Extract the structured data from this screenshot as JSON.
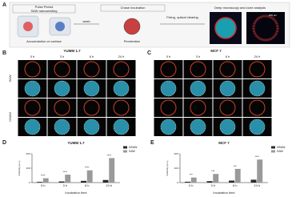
{
  "panel_a": {
    "label": "A",
    "steps": [
      "Pulse Period",
      "SAW nanoseeding",
      "wash",
      "Chase incubation",
      "Fixing, optical clearing",
      "Deep microscopy and zone analysis"
    ],
    "captions": [
      "Accumulation on surface",
      "Penetration"
    ],
    "scale": "200 µm"
  },
  "panel_b": {
    "label": "B",
    "title": "YUMM 1.7",
    "times": [
      "0 h",
      "3 h",
      "6 h",
      "24 h"
    ],
    "rows": [
      "SAW",
      "NSAW"
    ]
  },
  "panel_c": {
    "label": "C",
    "title": "MCF 7",
    "times": [
      "0 h",
      "3 h",
      "6 h",
      "24 h"
    ]
  },
  "chart_data": [
    {
      "type": "bar",
      "panel": "D",
      "title": "YUMM 1.7",
      "x_label": "Incubation time",
      "y_label": "Intensity (a.u.)",
      "categories": [
        "0 h",
        "3 h",
        "6 h",
        "24 h"
      ],
      "series": [
        {
          "name": "NSAW",
          "color": "#2b2b2b",
          "values": [
            5,
            8,
            12,
            18
          ]
        },
        {
          "name": "SAW",
          "color": "#9a9a9a",
          "values": [
            30,
            55,
            85,
            170
          ]
        }
      ],
      "ylim": [
        0,
        200
      ],
      "yticks": [
        0,
        100,
        200
      ],
      "annotations": [
        "****",
        "****",
        "****",
        "****"
      ]
    },
    {
      "type": "bar",
      "panel": "E",
      "title": "MCF 7",
      "x_label": "Incubation time",
      "y_label": "Intensity (a.u.)",
      "categories": [
        "0 h",
        "3 h",
        "6 h",
        "24 h"
      ],
      "series": [
        {
          "name": "NSAW",
          "color": "#2b2b2b",
          "values": [
            6,
            10,
            14,
            20
          ]
        },
        {
          "name": "SAW",
          "color": "#9a9a9a",
          "values": [
            35,
            60,
            95,
            160
          ]
        }
      ],
      "ylim": [
        0,
        200
      ],
      "yticks": [
        0,
        100,
        200
      ],
      "annotations": [
        "***",
        "***",
        "***",
        "****"
      ]
    }
  ]
}
